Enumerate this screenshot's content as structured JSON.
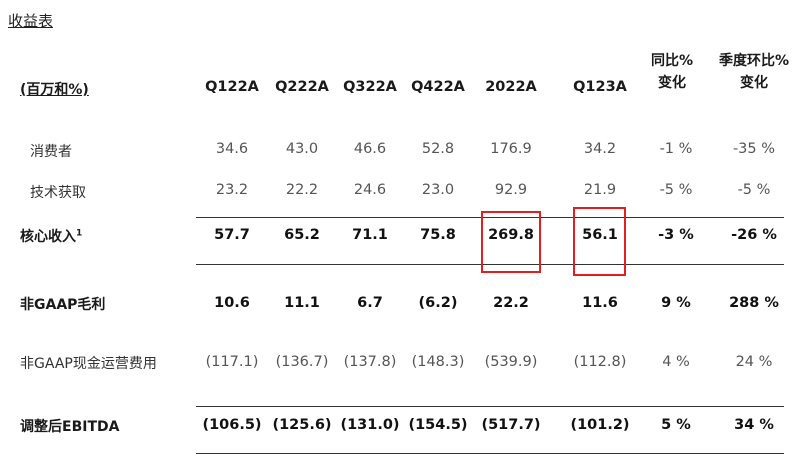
{
  "title": "收益表",
  "unit_label": "(百万和%)",
  "columns": [
    "Q122A",
    "Q222A",
    "Q322A",
    "Q422A",
    "2022A",
    "Q123A"
  ],
  "change_headers": [
    {
      "line1": "同比%",
      "line2": "变化"
    },
    {
      "line1": "季度环比%",
      "line2": "变化"
    }
  ],
  "rows": [
    {
      "label": "消费者",
      "values": [
        "34.6",
        "43.0",
        "46.6",
        "52.8",
        "176.9",
        "34.2",
        "-1 %",
        "-35 %"
      ]
    },
    {
      "label": "技术获取",
      "values": [
        "23.2",
        "22.2",
        "24.6",
        "23.0",
        "92.9",
        "21.9",
        "-5 %",
        "-5 %"
      ]
    },
    {
      "label": "核心收入",
      "footnote": "1",
      "values": [
        "57.7",
        "65.2",
        "71.1",
        "75.8",
        "269.8",
        "56.1",
        "-3 %",
        "-26 %"
      ]
    },
    {
      "label": "非GAAP毛利",
      "values": [
        "10.6",
        "11.1",
        "6.7",
        "(6.2)",
        "22.2",
        "11.6",
        "9 %",
        "288 %"
      ]
    },
    {
      "label": "非GAAP现金运营费用",
      "values": [
        "(117.1)",
        "(136.7)",
        "(137.8)",
        "(148.3)",
        "(539.9)",
        "(112.8)",
        "4 %",
        "24 %"
      ]
    },
    {
      "label": "调整后EBITDA",
      "values": [
        "(106.5)",
        "(125.6)",
        "(131.0)",
        "(154.5)",
        "(517.7)",
        "(101.2)",
        "5 %",
        "34 %"
      ]
    }
  ],
  "highlight_color": "#e02020"
}
